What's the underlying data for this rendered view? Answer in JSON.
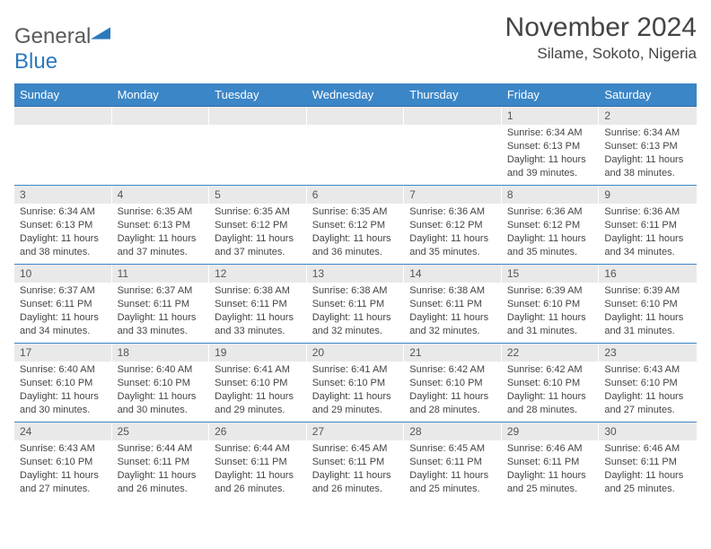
{
  "brand": {
    "part1": "General",
    "part2": "Blue"
  },
  "title": "November 2024",
  "location": "Silame, Sokoto, Nigeria",
  "colors": {
    "header_bg": "#3b86c7",
    "header_text": "#ffffff",
    "daynum_bg": "#e9e9ea",
    "border": "#3b86c7",
    "body_text": "#444444",
    "logo_gray": "#5a5a5a",
    "logo_blue": "#2a79bd"
  },
  "typography": {
    "title_fontsize": 30,
    "location_fontsize": 17,
    "dayheader_fontsize": 13,
    "daynum_fontsize": 12,
    "body_fontsize": 11
  },
  "day_headers": [
    "Sunday",
    "Monday",
    "Tuesday",
    "Wednesday",
    "Thursday",
    "Friday",
    "Saturday"
  ],
  "weeks": [
    [
      {
        "n": "",
        "sunrise": "",
        "sunset": "",
        "daylight": ""
      },
      {
        "n": "",
        "sunrise": "",
        "sunset": "",
        "daylight": ""
      },
      {
        "n": "",
        "sunrise": "",
        "sunset": "",
        "daylight": ""
      },
      {
        "n": "",
        "sunrise": "",
        "sunset": "",
        "daylight": ""
      },
      {
        "n": "",
        "sunrise": "",
        "sunset": "",
        "daylight": ""
      },
      {
        "n": "1",
        "sunrise": "Sunrise: 6:34 AM",
        "sunset": "Sunset: 6:13 PM",
        "daylight": "Daylight: 11 hours and 39 minutes."
      },
      {
        "n": "2",
        "sunrise": "Sunrise: 6:34 AM",
        "sunset": "Sunset: 6:13 PM",
        "daylight": "Daylight: 11 hours and 38 minutes."
      }
    ],
    [
      {
        "n": "3",
        "sunrise": "Sunrise: 6:34 AM",
        "sunset": "Sunset: 6:13 PM",
        "daylight": "Daylight: 11 hours and 38 minutes."
      },
      {
        "n": "4",
        "sunrise": "Sunrise: 6:35 AM",
        "sunset": "Sunset: 6:13 PM",
        "daylight": "Daylight: 11 hours and 37 minutes."
      },
      {
        "n": "5",
        "sunrise": "Sunrise: 6:35 AM",
        "sunset": "Sunset: 6:12 PM",
        "daylight": "Daylight: 11 hours and 37 minutes."
      },
      {
        "n": "6",
        "sunrise": "Sunrise: 6:35 AM",
        "sunset": "Sunset: 6:12 PM",
        "daylight": "Daylight: 11 hours and 36 minutes."
      },
      {
        "n": "7",
        "sunrise": "Sunrise: 6:36 AM",
        "sunset": "Sunset: 6:12 PM",
        "daylight": "Daylight: 11 hours and 35 minutes."
      },
      {
        "n": "8",
        "sunrise": "Sunrise: 6:36 AM",
        "sunset": "Sunset: 6:12 PM",
        "daylight": "Daylight: 11 hours and 35 minutes."
      },
      {
        "n": "9",
        "sunrise": "Sunrise: 6:36 AM",
        "sunset": "Sunset: 6:11 PM",
        "daylight": "Daylight: 11 hours and 34 minutes."
      }
    ],
    [
      {
        "n": "10",
        "sunrise": "Sunrise: 6:37 AM",
        "sunset": "Sunset: 6:11 PM",
        "daylight": "Daylight: 11 hours and 34 minutes."
      },
      {
        "n": "11",
        "sunrise": "Sunrise: 6:37 AM",
        "sunset": "Sunset: 6:11 PM",
        "daylight": "Daylight: 11 hours and 33 minutes."
      },
      {
        "n": "12",
        "sunrise": "Sunrise: 6:38 AM",
        "sunset": "Sunset: 6:11 PM",
        "daylight": "Daylight: 11 hours and 33 minutes."
      },
      {
        "n": "13",
        "sunrise": "Sunrise: 6:38 AM",
        "sunset": "Sunset: 6:11 PM",
        "daylight": "Daylight: 11 hours and 32 minutes."
      },
      {
        "n": "14",
        "sunrise": "Sunrise: 6:38 AM",
        "sunset": "Sunset: 6:11 PM",
        "daylight": "Daylight: 11 hours and 32 minutes."
      },
      {
        "n": "15",
        "sunrise": "Sunrise: 6:39 AM",
        "sunset": "Sunset: 6:10 PM",
        "daylight": "Daylight: 11 hours and 31 minutes."
      },
      {
        "n": "16",
        "sunrise": "Sunrise: 6:39 AM",
        "sunset": "Sunset: 6:10 PM",
        "daylight": "Daylight: 11 hours and 31 minutes."
      }
    ],
    [
      {
        "n": "17",
        "sunrise": "Sunrise: 6:40 AM",
        "sunset": "Sunset: 6:10 PM",
        "daylight": "Daylight: 11 hours and 30 minutes."
      },
      {
        "n": "18",
        "sunrise": "Sunrise: 6:40 AM",
        "sunset": "Sunset: 6:10 PM",
        "daylight": "Daylight: 11 hours and 30 minutes."
      },
      {
        "n": "19",
        "sunrise": "Sunrise: 6:41 AM",
        "sunset": "Sunset: 6:10 PM",
        "daylight": "Daylight: 11 hours and 29 minutes."
      },
      {
        "n": "20",
        "sunrise": "Sunrise: 6:41 AM",
        "sunset": "Sunset: 6:10 PM",
        "daylight": "Daylight: 11 hours and 29 minutes."
      },
      {
        "n": "21",
        "sunrise": "Sunrise: 6:42 AM",
        "sunset": "Sunset: 6:10 PM",
        "daylight": "Daylight: 11 hours and 28 minutes."
      },
      {
        "n": "22",
        "sunrise": "Sunrise: 6:42 AM",
        "sunset": "Sunset: 6:10 PM",
        "daylight": "Daylight: 11 hours and 28 minutes."
      },
      {
        "n": "23",
        "sunrise": "Sunrise: 6:43 AM",
        "sunset": "Sunset: 6:10 PM",
        "daylight": "Daylight: 11 hours and 27 minutes."
      }
    ],
    [
      {
        "n": "24",
        "sunrise": "Sunrise: 6:43 AM",
        "sunset": "Sunset: 6:10 PM",
        "daylight": "Daylight: 11 hours and 27 minutes."
      },
      {
        "n": "25",
        "sunrise": "Sunrise: 6:44 AM",
        "sunset": "Sunset: 6:11 PM",
        "daylight": "Daylight: 11 hours and 26 minutes."
      },
      {
        "n": "26",
        "sunrise": "Sunrise: 6:44 AM",
        "sunset": "Sunset: 6:11 PM",
        "daylight": "Daylight: 11 hours and 26 minutes."
      },
      {
        "n": "27",
        "sunrise": "Sunrise: 6:45 AM",
        "sunset": "Sunset: 6:11 PM",
        "daylight": "Daylight: 11 hours and 26 minutes."
      },
      {
        "n": "28",
        "sunrise": "Sunrise: 6:45 AM",
        "sunset": "Sunset: 6:11 PM",
        "daylight": "Daylight: 11 hours and 25 minutes."
      },
      {
        "n": "29",
        "sunrise": "Sunrise: 6:46 AM",
        "sunset": "Sunset: 6:11 PM",
        "daylight": "Daylight: 11 hours and 25 minutes."
      },
      {
        "n": "30",
        "sunrise": "Sunrise: 6:46 AM",
        "sunset": "Sunset: 6:11 PM",
        "daylight": "Daylight: 11 hours and 25 minutes."
      }
    ]
  ]
}
